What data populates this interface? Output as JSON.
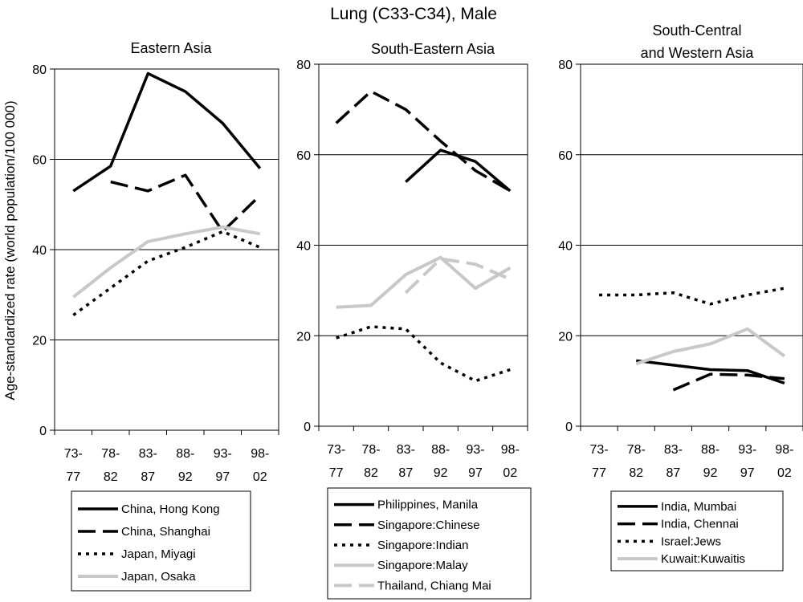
{
  "figure": {
    "title": "Lung (C33-C34), Male",
    "ylabel": "Age-standardized rate (world population/100 000)"
  },
  "chart_data": [
    {
      "type": "line",
      "title": "Eastern Asia",
      "categories": [
        [
          "73-",
          "77"
        ],
        [
          "78-",
          "82"
        ],
        [
          "83-",
          "87"
        ],
        [
          "88-",
          "92"
        ],
        [
          "93-",
          "97"
        ],
        [
          "98-",
          "02"
        ]
      ],
      "ylim": [
        0,
        80
      ],
      "yticks": [
        0,
        20,
        40,
        60,
        80
      ],
      "grid": true,
      "legend": "below",
      "series": [
        {
          "name": "China, Hong Kong",
          "values": [
            53,
            58.5,
            79,
            75,
            68,
            58
          ],
          "color": "#000000",
          "dash": "solid"
        },
        {
          "name": "China, Shanghai",
          "values": [
            null,
            55,
            53,
            56.5,
            44,
            52
          ],
          "color": "#000000",
          "dash": "dash"
        },
        {
          "name": "Japan, Miyagi",
          "values": [
            25.5,
            31.5,
            37.5,
            40.5,
            44,
            40.5
          ],
          "color": "#000000",
          "dash": "dot"
        },
        {
          "name": "Japan, Osaka",
          "values": [
            29.5,
            36,
            41.8,
            43.5,
            45,
            43.5
          ],
          "color": "#c8c8c8",
          "dash": "solid"
        }
      ]
    },
    {
      "type": "line",
      "title": "South-Eastern Asia",
      "categories": [
        [
          "73-",
          "77"
        ],
        [
          "78-",
          "82"
        ],
        [
          "83-",
          "87"
        ],
        [
          "88-",
          "92"
        ],
        [
          "93-",
          "97"
        ],
        [
          "98-",
          "02"
        ]
      ],
      "ylim": [
        0,
        80
      ],
      "yticks": [
        0,
        20,
        40,
        60,
        80
      ],
      "grid": true,
      "legend": "below",
      "series": [
        {
          "name": "Philippines, Manila",
          "values": [
            null,
            null,
            54,
            61,
            58.5,
            52
          ],
          "color": "#000000",
          "dash": "solid"
        },
        {
          "name": "Singapore:Chinese",
          "values": [
            67,
            74,
            70,
            63,
            56.5,
            52
          ],
          "color": "#000000",
          "dash": "dash"
        },
        {
          "name": "Singapore:Indian",
          "values": [
            19.5,
            22,
            21.5,
            14,
            10,
            12.5
          ],
          "color": "#000000",
          "dash": "dot"
        },
        {
          "name": "Singapore:Malay",
          "values": [
            26.3,
            26.7,
            33.5,
            37.3,
            30.5,
            35
          ],
          "color": "#c8c8c8",
          "dash": "solid"
        },
        {
          "name": "Thailand, Chiang Mai",
          "values": [
            null,
            null,
            29.5,
            37,
            35.8,
            32.5
          ],
          "color": "#c8c8c8",
          "dash": "dash"
        }
      ]
    },
    {
      "type": "line",
      "title": "South-Central\nand Western Asia",
      "categories": [
        [
          "73-",
          "77"
        ],
        [
          "78-",
          "82"
        ],
        [
          "83-",
          "87"
        ],
        [
          "88-",
          "92"
        ],
        [
          "93-",
          "97"
        ],
        [
          "98-",
          "02"
        ]
      ],
      "ylim": [
        0,
        80
      ],
      "yticks": [
        0,
        20,
        40,
        60,
        80
      ],
      "grid": true,
      "legend": "below",
      "series": [
        {
          "name": "India, Mumbai",
          "values": [
            null,
            14.5,
            13.5,
            12.5,
            12.3,
            9.5
          ],
          "color": "#000000",
          "dash": "solid"
        },
        {
          "name": "India, Chennai",
          "values": [
            null,
            null,
            8,
            11.5,
            11.3,
            10.5
          ],
          "color": "#000000",
          "dash": "dash"
        },
        {
          "name": "Israel:Jews",
          "values": [
            29,
            29,
            29.5,
            27,
            29,
            30.5
          ],
          "color": "#000000",
          "dash": "dot"
        },
        {
          "name": "Kuwait:Kuwaitis",
          "values": [
            null,
            13.8,
            16.5,
            18.2,
            21.5,
            15.5
          ],
          "color": "#c8c8c8",
          "dash": "solid"
        }
      ]
    }
  ]
}
